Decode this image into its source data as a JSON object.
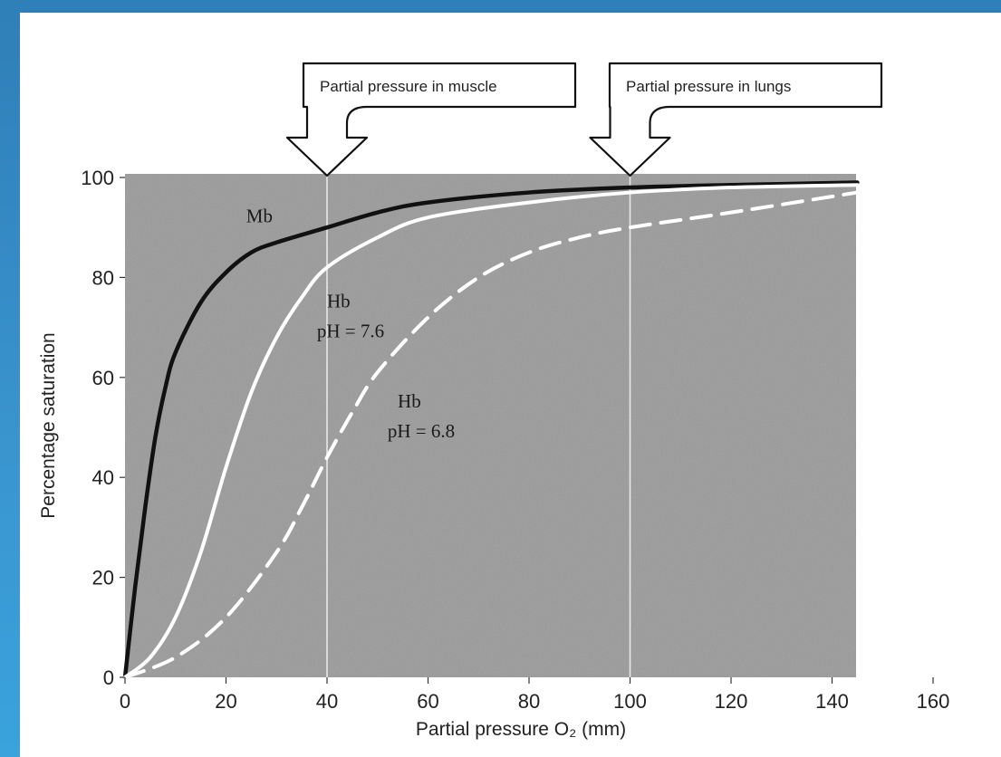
{
  "chart_data": {
    "type": "line",
    "xlabel": "Partial pressure O₂ (mm)",
    "ylabel": "Percentage saturation",
    "xlim": [
      0,
      160
    ],
    "ylim": [
      0,
      100
    ],
    "x_ticks": [
      0,
      20,
      40,
      60,
      80,
      100,
      120,
      140,
      160
    ],
    "y_ticks": [
      0,
      20,
      40,
      60,
      80,
      100
    ],
    "grid": false,
    "background": "#9a9a9a",
    "series": [
      {
        "name": "Mb",
        "color": "#111111",
        "style": "solid",
        "x": [
          0,
          2,
          4,
          6,
          8,
          10,
          15,
          20,
          25,
          30,
          40,
          50,
          60,
          80,
          100,
          120,
          145
        ],
        "y": [
          0,
          18,
          34,
          48,
          58,
          65,
          75,
          81,
          85,
          87,
          90,
          93,
          95,
          97,
          98,
          98.5,
          99
        ]
      },
      {
        "name": "Hb pH = 7.6",
        "color": "#ffffff",
        "style": "solid",
        "x": [
          0,
          5,
          10,
          15,
          20,
          25,
          30,
          35,
          40,
          50,
          60,
          80,
          100,
          120,
          145
        ],
        "y": [
          0,
          4,
          12,
          25,
          42,
          57,
          68,
          76,
          82,
          88,
          92,
          95,
          97,
          98,
          98.5
        ]
      },
      {
        "name": "Hb pH = 6.8",
        "color": "#ffffff",
        "style": "dashed",
        "x": [
          0,
          10,
          20,
          30,
          35,
          40,
          45,
          50,
          60,
          70,
          80,
          90,
          100,
          120,
          145
        ],
        "y": [
          0,
          4,
          12,
          25,
          34,
          44,
          53,
          61,
          72,
          80,
          85,
          88,
          90,
          93,
          97
        ]
      }
    ],
    "reference_lines": [
      {
        "x": 40,
        "label": "Partial pressure in muscle"
      },
      {
        "x": 100,
        "label": "Partial pressure in lungs"
      }
    ],
    "annotations": [
      {
        "text": "Mb",
        "x": 24,
        "y": 91
      },
      {
        "text": "Hb",
        "x": 40,
        "y": 74
      },
      {
        "text": "pH = 7.6",
        "x": 38,
        "y": 68
      },
      {
        "text": "Hb",
        "x": 54,
        "y": 54
      },
      {
        "text": "pH = 6.8",
        "x": 52,
        "y": 48
      }
    ]
  }
}
